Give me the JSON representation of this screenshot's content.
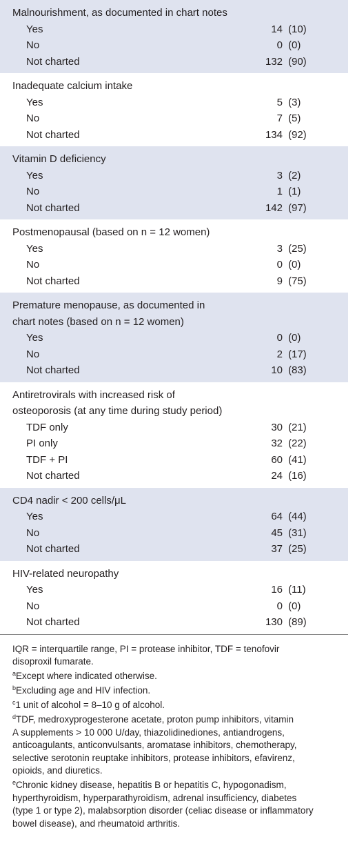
{
  "table": {
    "groups": [
      {
        "header": [
          "Malnourishment, as documented in chart notes"
        ],
        "rows": [
          [
            "Yes",
            14,
            "(10)"
          ],
          [
            "No",
            0,
            "(0)"
          ],
          [
            "Not charted",
            132,
            "(90)"
          ]
        ]
      },
      {
        "header": [
          "Inadequate calcium intake"
        ],
        "rows": [
          [
            "Yes",
            5,
            "(3)"
          ],
          [
            "No",
            7,
            "(5)"
          ],
          [
            "Not charted",
            134,
            "(92)"
          ]
        ]
      },
      {
        "header": [
          "Vitamin D deficiency"
        ],
        "rows": [
          [
            "Yes",
            3,
            "(2)"
          ],
          [
            "No",
            1,
            "(1)"
          ],
          [
            "Not charted",
            142,
            "(97)"
          ]
        ]
      },
      {
        "header": [
          "Postmenopausal (based on n = 12 women)"
        ],
        "rows": [
          [
            "Yes",
            3,
            "(25)"
          ],
          [
            "No",
            0,
            "(0)"
          ],
          [
            "Not charted",
            9,
            "(75)"
          ]
        ]
      },
      {
        "header": [
          "Premature menopause, as documented in",
          "chart notes (based on n = 12 women)"
        ],
        "rows": [
          [
            "Yes",
            0,
            "(0)"
          ],
          [
            "No",
            2,
            "(17)"
          ],
          [
            "Not charted",
            10,
            "(83)"
          ]
        ]
      },
      {
        "header": [
          "Antiretrovirals with increased risk of",
          "osteoporosis (at any time during study period)"
        ],
        "rows": [
          [
            "TDF only",
            30,
            "(21)"
          ],
          [
            "PI only",
            32,
            "(22)"
          ],
          [
            "TDF + PI",
            60,
            "(41)"
          ],
          [
            "Not charted",
            24,
            "(16)"
          ]
        ]
      },
      {
        "header": [
          "CD4 nadir < 200 cells/μL"
        ],
        "rows": [
          [
            "Yes",
            64,
            "(44)"
          ],
          [
            "No",
            45,
            "(31)"
          ],
          [
            "Not charted",
            37,
            "(25)"
          ]
        ]
      },
      {
        "header": [
          "HIV-related neuropathy"
        ],
        "rows": [
          [
            "Yes",
            16,
            "(11)"
          ],
          [
            "No",
            0,
            "(0)"
          ],
          [
            "Not charted",
            130,
            "(89)"
          ]
        ]
      }
    ]
  },
  "footnotes": [
    {
      "lines": [
        "IQR = interquartile range, PI = protease inhibitor, TDF = tenofovir",
        "disoproxil fumarate."
      ]
    },
    {
      "mark": "a",
      "lines": [
        "Except where indicated otherwise."
      ]
    },
    {
      "mark": "b",
      "lines": [
        "Excluding age and HIV infection."
      ]
    },
    {
      "mark": "c",
      "lines": [
        "1 unit of alcohol = 8–10 g of alcohol."
      ]
    },
    {
      "mark": "d",
      "lines": [
        "TDF, medroxyprogesterone acetate, proton pump inhibitors, vitamin",
        "A supplements > 10 000 U/day, thiazolidinediones, antiandrogens,",
        "anticoagulants, anticonvulsants, aromatase inhibitors, chemotherapy,",
        "selective serotonin reuptake inhibitors, protease inhibitors, efavirenz,",
        "opioids, and diuretics."
      ]
    },
    {
      "mark": "e",
      "lines": [
        "Chronic kidney disease, hepatitis B or hepatitis C, hypogonadism,",
        "hyperthyroidism, hyperparathyroidism, adrenal insufficiency, diabetes",
        "(type 1 or type 2), malabsorption disorder (celiac disease or inflammatory",
        "bowel disease), and rheumatoid arthritis."
      ]
    }
  ]
}
